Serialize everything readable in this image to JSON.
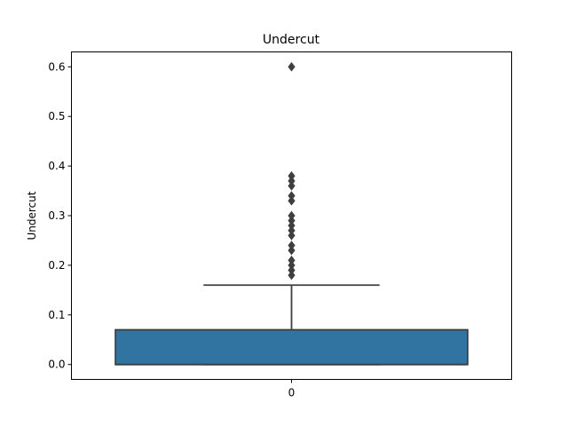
{
  "chart_data": {
    "type": "box",
    "title": "Undercut",
    "xlabel": "",
    "ylabel": "Undercut",
    "ylim": [
      -0.03,
      0.63
    ],
    "yticks": [
      0.0,
      0.1,
      0.2,
      0.3,
      0.4,
      0.5,
      0.6
    ],
    "ytick_labels": [
      "0.0",
      "0.1",
      "0.2",
      "0.3",
      "0.4",
      "0.5",
      "0.6"
    ],
    "categories": [
      "0"
    ],
    "grid": false,
    "legend": "none",
    "boxes": [
      {
        "category": "0",
        "whisker_low": 0.0,
        "q1": 0.0,
        "median": 0.0,
        "q3": 0.07,
        "whisker_high": 0.16,
        "outliers": [
          0.18,
          0.19,
          0.2,
          0.21,
          0.23,
          0.24,
          0.26,
          0.27,
          0.28,
          0.29,
          0.3,
          0.33,
          0.34,
          0.36,
          0.37,
          0.38,
          0.6
        ]
      }
    ],
    "colors": {
      "box_fill": "#3274a1",
      "line": "#3f3f3f",
      "axes": "#000000",
      "background": "#ffffff"
    }
  }
}
